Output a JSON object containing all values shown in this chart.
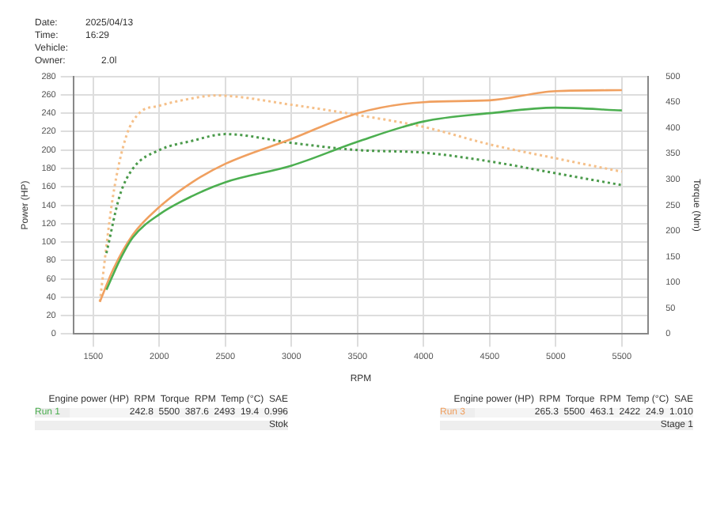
{
  "chart_data": {
    "type": "line",
    "xlabel": "RPM",
    "ylabel": "Power (HP)",
    "y2label": "Torque (Nm)",
    "xlim": [
      1350,
      5700
    ],
    "xticks": [
      1500,
      2000,
      2500,
      3000,
      3500,
      4000,
      4500,
      5000,
      5500
    ],
    "ylim": [
      0,
      280
    ],
    "yticks": [
      0,
      20,
      40,
      60,
      80,
      100,
      120,
      140,
      160,
      180,
      200,
      220,
      240,
      260,
      280
    ],
    "y2lim": [
      0,
      500
    ],
    "y2ticks": [
      0,
      50,
      100,
      150,
      200,
      250,
      300,
      350,
      400,
      450,
      500
    ],
    "grid": true,
    "legend": false,
    "marker": "none",
    "series": [
      {
        "name": "Run 1",
        "color": "#4caf50",
        "line_style": "solid",
        "x": [
          1600,
          1700,
          1800,
          2000,
          2250,
          2500,
          3000,
          3500,
          4000,
          4500,
          5000,
          5500
        ],
        "values": [
          48,
          80,
          105,
          130,
          150,
          165,
          183,
          209,
          231,
          240,
          246,
          243
        ]
      },
      {
        "name": "Run 3",
        "color": "#f0a060",
        "line_style": "solid",
        "x": [
          1550,
          1650,
          1800,
          2000,
          2250,
          2500,
          3000,
          3500,
          4000,
          4500,
          5000,
          5500
        ],
        "values": [
          35,
          70,
          108,
          138,
          165,
          185,
          212,
          240,
          252,
          254,
          264,
          265
        ]
      },
      {
        "color": "#4a9a4a",
        "axis": "y2",
        "line_style": "dotted",
        "x": [
          1600,
          1700,
          1800,
          2000,
          2250,
          2500,
          3000,
          3500,
          4000,
          4500,
          5000,
          5500
        ],
        "values": [
          157,
          268,
          321,
          357,
          375,
          388,
          371,
          357,
          352,
          335,
          312,
          289
        ]
      },
      {
        "color": "#f5c08a",
        "axis": "y2",
        "line_style": "dotted",
        "x": [
          1550,
          1650,
          1750,
          1850,
          2000,
          2200,
          2422,
          3000,
          3500,
          4000,
          4500,
          5000,
          5500
        ],
        "values": [
          63,
          268,
          384,
          429,
          443,
          455,
          463,
          445,
          425,
          402,
          368,
          341,
          315
        ]
      }
    ],
    "annotations": [
      "Date:",
      "2025/04/13",
      "Time:",
      "16:29",
      "Vehicle:",
      "Owner:",
      "2.0l",
      "Engine power (HP)  RPM  Torque  RPM  Temp (°C)  SAE",
      "242.8  5500  387.6  2493  19.4  0.996",
      "Stok",
      "Engine power (HP)  RPM  Torque  RPM  Temp (°C)  SAE",
      "265.3  5500  463.1  2422  24.9  1.010",
      "Stage 1"
    ]
  }
}
